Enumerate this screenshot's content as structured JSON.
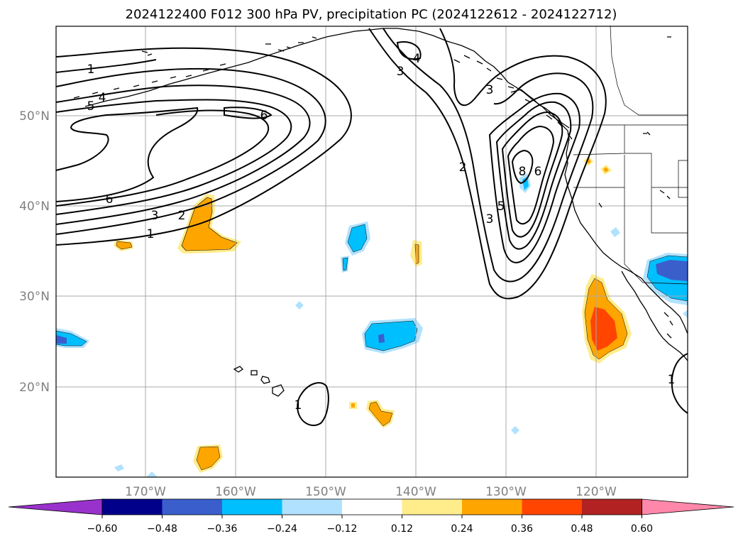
{
  "title": "2024122400 F012 300 hPa PV, precipitation PC (2024122612 - 2024122712)",
  "lon_labels": [
    "170°W",
    "160°W",
    "150°W",
    "140°W",
    "130°W",
    "120°W"
  ],
  "lat_labels": [
    "50°N",
    "40°N",
    "30°N",
    "20°N"
  ],
  "contour_labels": [
    "1",
    "4",
    "5",
    "6",
    "6",
    "3",
    "2",
    "1",
    "3",
    "4",
    "3",
    "2",
    "8",
    "6",
    "5",
    "3",
    "1",
    "1"
  ],
  "colorbar": {
    "ticks": [
      "−0.60",
      "−0.48",
      "−0.36",
      "−0.24",
      "−0.12",
      "0.12",
      "0.24",
      "0.36",
      "0.48",
      "0.60"
    ],
    "colors": [
      "#9932cc",
      "#00008b",
      "#3a5fcd",
      "#00bfff",
      "#b0e2ff",
      "#ffffff",
      "#ffec8b",
      "#ffa500",
      "#ff4500",
      "#b22222",
      "#ff88aa"
    ]
  },
  "colors": {
    "blue_light": "#b0e2ff",
    "blue": "#00bfff",
    "blue_royal": "#3a5fcd",
    "purple": "#9932cc",
    "yellow": "#ffec8b",
    "orange": "#ffa500",
    "red_orange": "#ff4500",
    "grid": "#aaaaaa",
    "axis_label": "#808080"
  }
}
